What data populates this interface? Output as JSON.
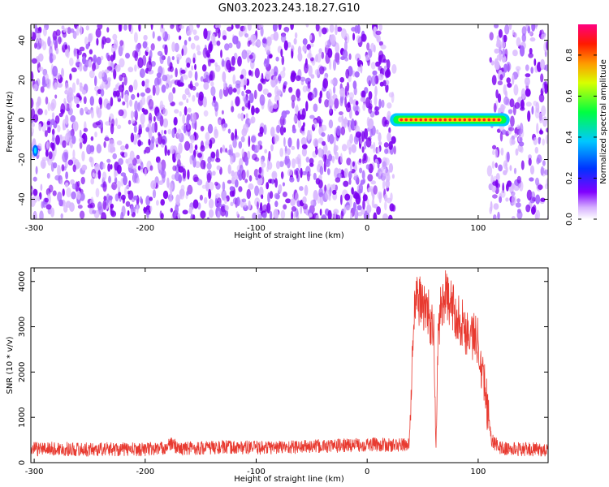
{
  "title": "GN03.2023.243.18.27.G10",
  "colors": {
    "snr_line": "#e83a30",
    "speckle_dark": "#7b00f0",
    "speckle_light": "#d9b8ff",
    "frame": "#000000"
  },
  "chart_data": [
    {
      "type": "heatmap",
      "title": "",
      "xlabel": "Height of straight line (km)",
      "ylabel": "Frequency (Hz)",
      "xlim": [
        -303,
        163
      ],
      "ylim": [
        -50,
        48
      ],
      "x_ticks": [
        -300,
        -200,
        -100,
        0,
        100
      ],
      "y_ticks": [
        40,
        20,
        0,
        -20,
        -40
      ],
      "colorbar": {
        "label": "Normalized spectral amplitude",
        "range": [
          0.0,
          0.95
        ],
        "ticks": [
          0.0,
          0.2,
          0.4,
          0.6,
          0.8
        ],
        "colormap": "rainbow (white-violet-blue-cyan-green-yellow-red-magenta)"
      },
      "features": [
        {
          "name": "strong-signal-band",
          "x_range": [
            22,
            127
          ],
          "frequency_hz": 0,
          "amplitude": 0.85
        },
        {
          "name": "edge-blip",
          "x": -299,
          "frequency_range_hz": [
            -18,
            -13
          ],
          "amplitude": 0.35
        }
      ],
      "noise_gaps_km": [
        [
          25,
          110
        ]
      ],
      "grid": false
    },
    {
      "type": "line",
      "title": "",
      "xlabel": "Height of straight line (km)",
      "ylabel": "SNR (10 * v/v)",
      "xlim": [
        -303,
        163
      ],
      "ylim": [
        0,
        4300
      ],
      "x_ticks": [
        -300,
        -200,
        -100,
        0,
        100
      ],
      "y_ticks": [
        0,
        1000,
        2000,
        3000,
        4000
      ],
      "series": [
        {
          "x": [
            -303,
            -290,
            -270,
            -250,
            -230,
            -210,
            -200,
            -185,
            -175,
            -170,
            -160,
            -140,
            -120,
            -100,
            -80,
            -60,
            -40,
            -20,
            0,
            10,
            20,
            30,
            38,
            42,
            45,
            50,
            55,
            60,
            62,
            64,
            66,
            70,
            75,
            80,
            85,
            90,
            95,
            100,
            103,
            107,
            112,
            118,
            125,
            140,
            163
          ],
          "y": [
            300,
            310,
            300,
            290,
            300,
            290,
            300,
            310,
            420,
            300,
            320,
            330,
            340,
            330,
            340,
            350,
            360,
            380,
            400,
            400,
            380,
            390,
            400,
            3400,
            3600,
            3500,
            3300,
            2800,
            250,
            2800,
            3400,
            3700,
            3500,
            3300,
            3100,
            2900,
            2800,
            2700,
            2200,
            1500,
            500,
            350,
            300,
            300,
            280
          ],
          "noise_amplitude": 260
        }
      ],
      "grid": false
    }
  ]
}
